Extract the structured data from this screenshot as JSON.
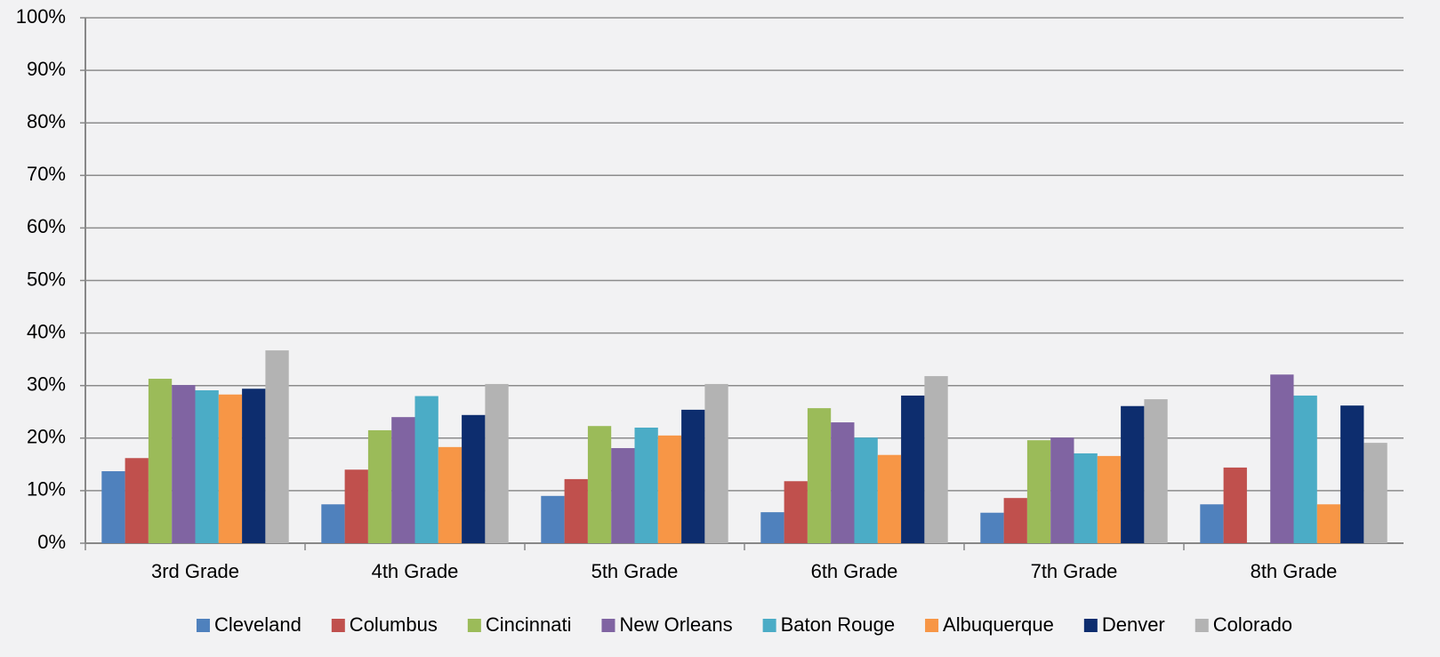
{
  "chart_data": {
    "type": "bar",
    "categories": [
      "3rd Grade",
      "4th Grade",
      "5th Grade",
      "6th Grade",
      "7th Grade",
      "8th Grade"
    ],
    "series": [
      {
        "name": "Cleveland",
        "color": "#4f81bd",
        "values": [
          13.7,
          7.4,
          9,
          5.9,
          5.8,
          7.4
        ]
      },
      {
        "name": "Columbus",
        "color": "#c0504d",
        "values": [
          16.2,
          14,
          12.2,
          11.8,
          8.6,
          14.4
        ]
      },
      {
        "name": "Cincinnati",
        "color": "#9bbb59",
        "values": [
          31.3,
          21.5,
          22.3,
          25.7,
          19.6,
          null
        ]
      },
      {
        "name": "New Orleans",
        "color": "#8064a2",
        "values": [
          30.1,
          24,
          18.1,
          23,
          20.1,
          32.1
        ]
      },
      {
        "name": "Baton Rouge",
        "color": "#4bacc6",
        "values": [
          29.1,
          28,
          22,
          20.1,
          17.1,
          28.1
        ]
      },
      {
        "name": "Albuquerque",
        "color": "#f79646",
        "values": [
          28.3,
          18.3,
          20.5,
          16.8,
          16.6,
          7.4
        ]
      },
      {
        "name": "Denver",
        "color": "#0d2d6e",
        "values": [
          29.4,
          24.4,
          25.4,
          28.1,
          26.1,
          26.2
        ]
      },
      {
        "name": "Colorado",
        "color": "#b3b3b3",
        "values": [
          36.7,
          30.3,
          30.3,
          31.8,
          27.4,
          19.1
        ]
      }
    ],
    "ylim": [
      0,
      100
    ],
    "yticks": [
      {
        "value": 0,
        "label": "0%"
      },
      {
        "value": 10,
        "label": "10%"
      },
      {
        "value": 20,
        "label": "20%"
      },
      {
        "value": 30,
        "label": "30%"
      },
      {
        "value": 40,
        "label": "40%"
      },
      {
        "value": 50,
        "label": "50%"
      },
      {
        "value": 60,
        "label": "60%"
      },
      {
        "value": 70,
        "label": "70%"
      },
      {
        "value": 80,
        "label": "80%"
      },
      {
        "value": 90,
        "label": "90%"
      },
      {
        "value": 100,
        "label": "100%"
      }
    ],
    "grid": true,
    "legend": "bottom"
  }
}
